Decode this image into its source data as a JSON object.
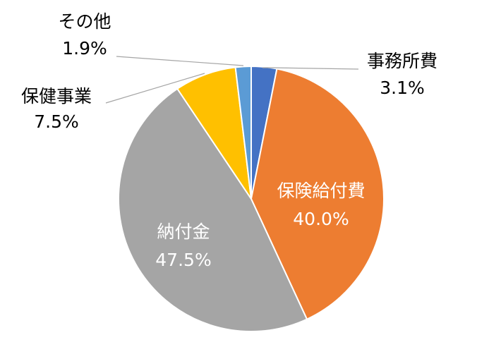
{
  "chart_data": {
    "type": "pie",
    "categories": [
      "事務所費",
      "保険給付費",
      "納付金",
      "保健事業",
      "その他"
    ],
    "values": [
      3.1,
      40.0,
      47.5,
      7.5,
      1.9
    ],
    "value_labels": [
      "3.1%",
      "40.0%",
      "47.5%",
      "7.5%",
      "1.9%"
    ],
    "colors": [
      "#4472c4",
      "#ed7d31",
      "#a5a5a5",
      "#ffc000",
      "#5b9bd5"
    ]
  }
}
